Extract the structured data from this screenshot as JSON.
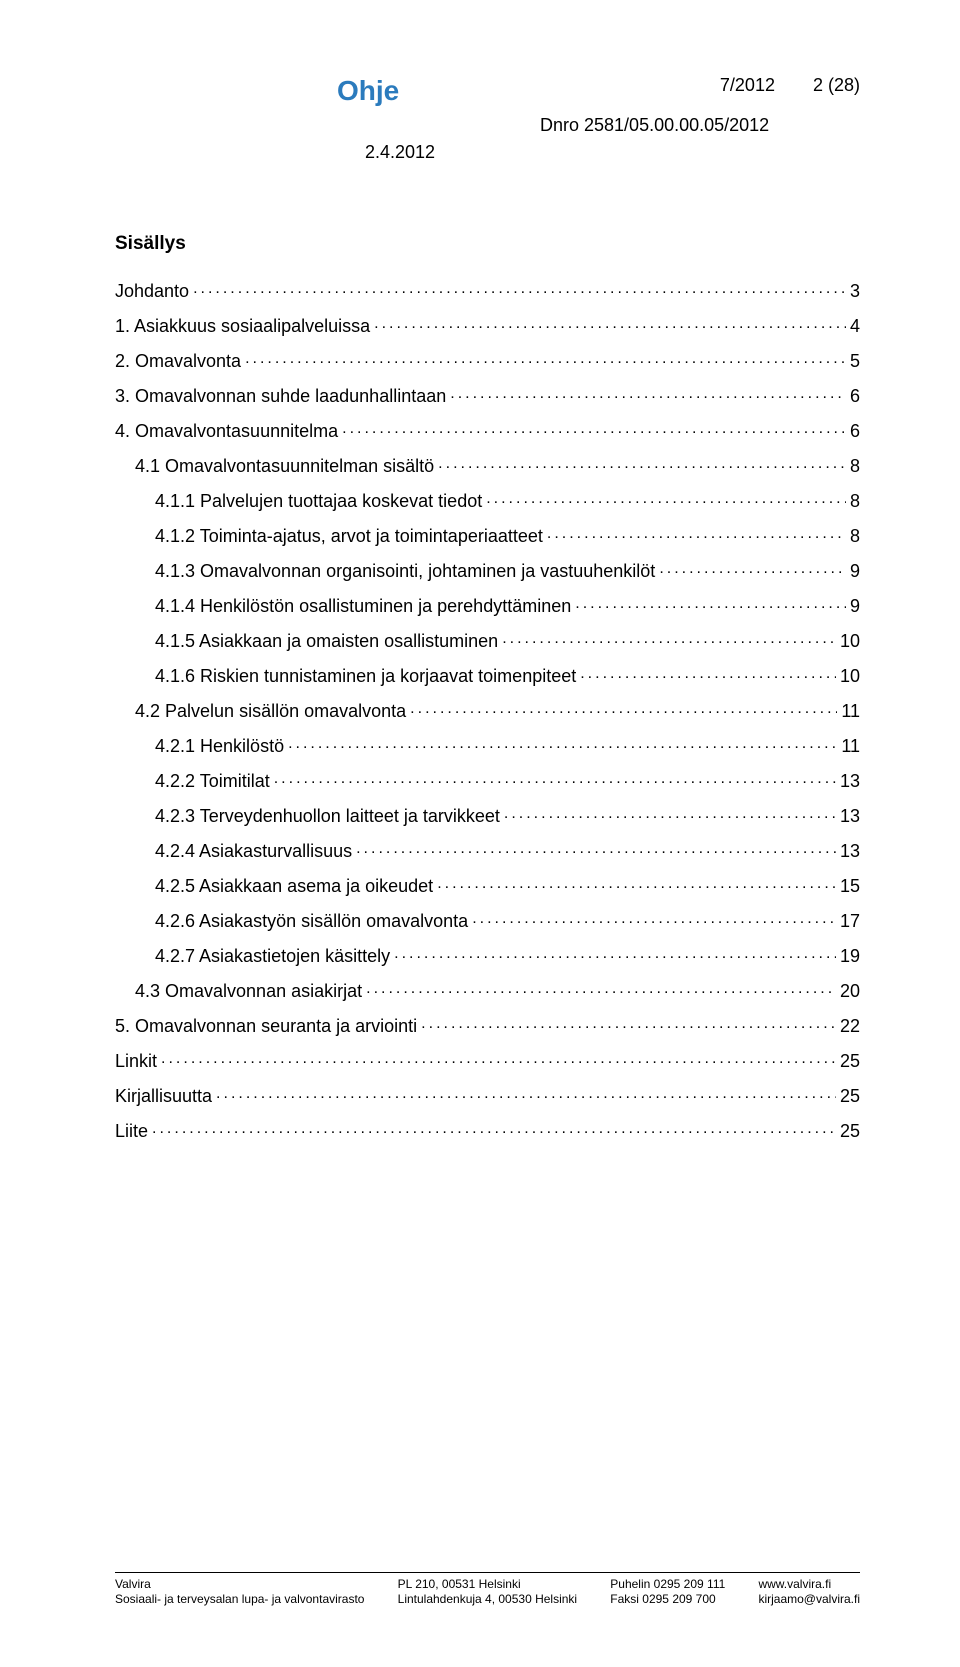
{
  "header": {
    "title": "Ohje",
    "issue": "7/2012",
    "page_counter": "2 (28)",
    "dnro": "Dnro 2581/05.00.00.05/2012",
    "date": "2.4.2012"
  },
  "toc_title": "Sisällys",
  "toc": [
    {
      "label": "Johdanto",
      "page": "3",
      "indent": 0
    },
    {
      "label": "1. Asiakkuus sosiaalipalveluissa",
      "page": "4",
      "indent": 0
    },
    {
      "label": "2. Omavalvonta",
      "page": "5",
      "indent": 0
    },
    {
      "label": "3. Omavalvonnan suhde laadunhallintaan",
      "page": "6",
      "indent": 0
    },
    {
      "label": "4. Omavalvontasuunnitelma",
      "page": "6",
      "indent": 0
    },
    {
      "label": "4.1 Omavalvontasuunnitelman sisältö",
      "page": "8",
      "indent": 1
    },
    {
      "label": "4.1.1 Palvelujen tuottajaa koskevat tiedot",
      "page": "8",
      "indent": 2
    },
    {
      "label": "4.1.2 Toiminta-ajatus, arvot ja toimintaperiaatteet",
      "page": "8",
      "indent": 2
    },
    {
      "label": "4.1.3 Omavalvonnan organisointi, johtaminen ja vastuuhenkilöt",
      "page": "9",
      "indent": 2
    },
    {
      "label": "4.1.4 Henkilöstön osallistuminen ja perehdyttäminen",
      "page": "9",
      "indent": 2
    },
    {
      "label": "4.1.5 Asiakkaan ja omaisten osallistuminen",
      "page": "10",
      "indent": 2
    },
    {
      "label": "4.1.6 Riskien tunnistaminen ja korjaavat toimenpiteet",
      "page": "10",
      "indent": 2
    },
    {
      "label": "4.2 Palvelun sisällön omavalvonta",
      "page": "11",
      "indent": 1
    },
    {
      "label": "4.2.1 Henkilöstö",
      "page": "11",
      "indent": 2
    },
    {
      "label": "4.2.2 Toimitilat",
      "page": "13",
      "indent": 2
    },
    {
      "label": "4.2.3 Terveydenhuollon laitteet ja tarvikkeet",
      "page": "13",
      "indent": 2
    },
    {
      "label": "4.2.4 Asiakasturvallisuus",
      "page": "13",
      "indent": 2
    },
    {
      "label": "4.2.5 Asiakkaan asema ja oikeudet",
      "page": "15",
      "indent": 2
    },
    {
      "label": "4.2.6 Asiakastyön sisällön omavalvonta",
      "page": "17",
      "indent": 2
    },
    {
      "label": "4.2.7 Asiakastietojen käsittely",
      "page": "19",
      "indent": 2
    },
    {
      "label": "4.3 Omavalvonnan asiakirjat",
      "page": "20",
      "indent": 1
    },
    {
      "label": "5. Omavalvonnan seuranta ja arviointi",
      "page": "22",
      "indent": 0
    },
    {
      "label": "Linkit",
      "page": "25",
      "indent": 0
    },
    {
      "label": "Kirjallisuutta",
      "page": "25",
      "indent": 0
    },
    {
      "label": "Liite",
      "page": "25",
      "indent": 0
    }
  ],
  "footer": {
    "col1": {
      "line1": "Valvira",
      "line2": "Sosiaali- ja terveysalan lupa- ja valvontavirasto"
    },
    "col2": {
      "line1": "PL 210, 00531 Helsinki",
      "line2": "Lintulahdenkuja 4, 00530 Helsinki"
    },
    "col3": {
      "line1": "Puhelin 0295 209 111",
      "line2": "Faksi 0295 209 700"
    },
    "col4": {
      "line1": "www.valvira.fi",
      "line2": "kirjaamo@valvira.fi"
    }
  }
}
